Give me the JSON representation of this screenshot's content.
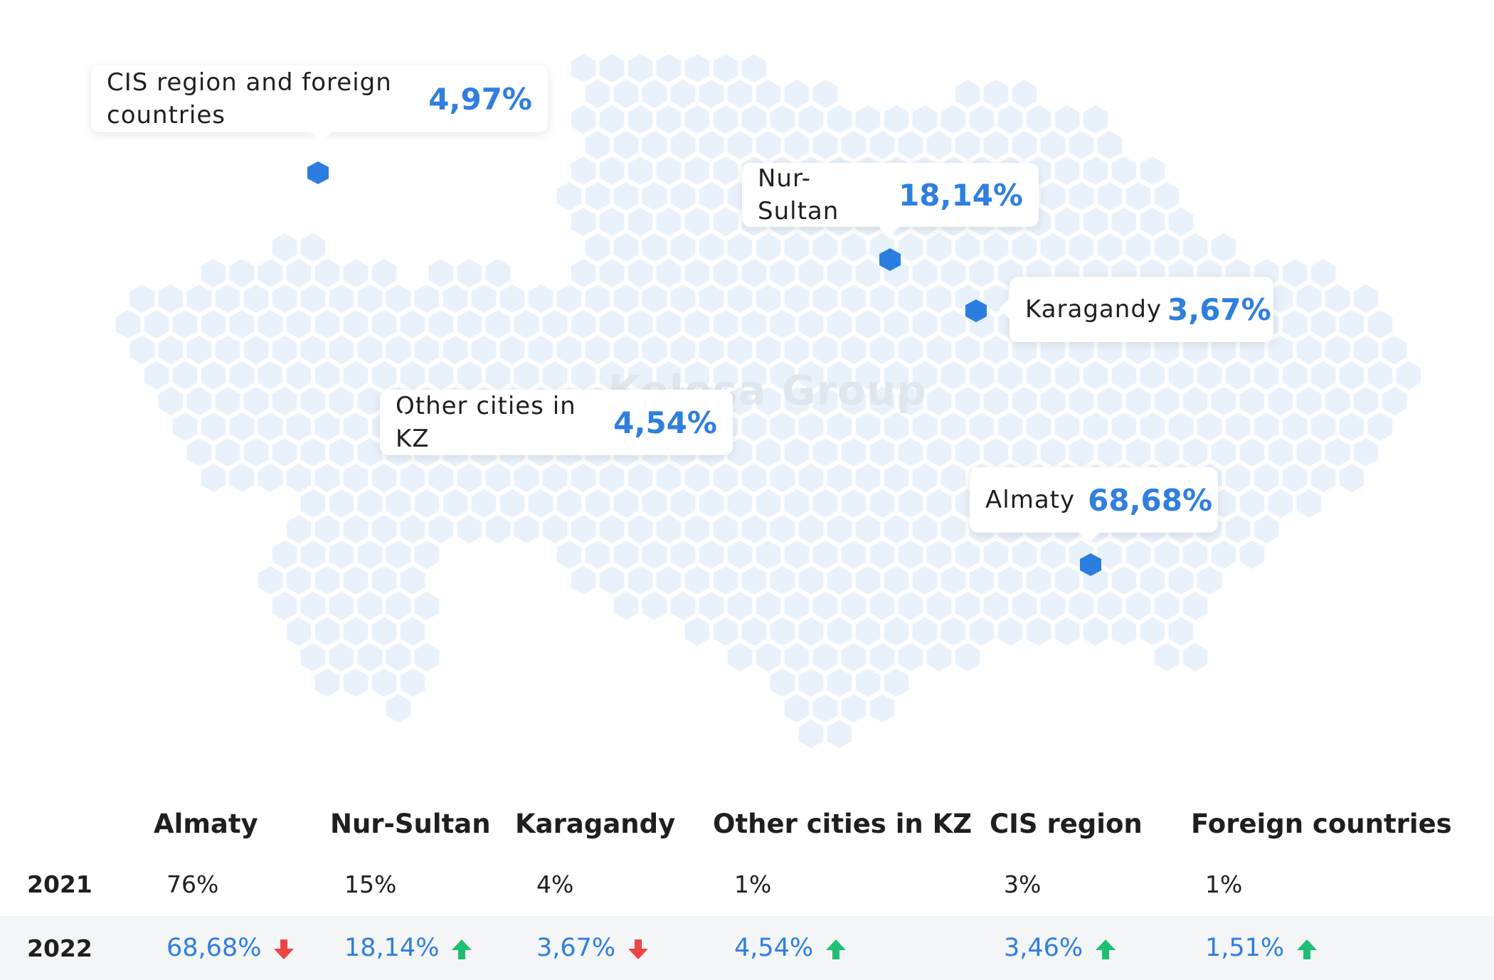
{
  "map": {
    "watermark": "Kolesa Group",
    "callouts": {
      "cis": {
        "label": "CIS region and foreign countries",
        "value": "4,97%"
      },
      "nursultan": {
        "label": "Nur-Sultan",
        "value": "18,14%"
      },
      "karagandy": {
        "label": "Karagandy",
        "value": "3,67%"
      },
      "other": {
        "label": "Other cities in KZ",
        "value": "4,54%"
      },
      "almaty": {
        "label": "Almaty",
        "value": "68,68%"
      }
    },
    "colors": {
      "hex_fill": "#e9f2fb",
      "marker": "#2b7ee0",
      "value_text": "#2f7fde"
    }
  },
  "table": {
    "headers": [
      "Almaty",
      "Nur-Sultan",
      "Karagandy",
      "Other cities in KZ",
      "CIS region",
      "Foreign countries"
    ],
    "rows": [
      {
        "year": "2021",
        "values": [
          "76%",
          "15%",
          "4%",
          "1%",
          "3%",
          "1%"
        ]
      },
      {
        "year": "2022",
        "values": [
          "68,68%",
          "18,14%",
          "3,67%",
          "4,54%",
          "3,46%",
          "1,51%"
        ],
        "trend": [
          "down-arrow-icon",
          "up-arrow-icon",
          "down-arrow-icon",
          "up-arrow-icon",
          "up-arrow-icon",
          "up-arrow-icon"
        ]
      }
    ],
    "colors": {
      "up": "#1fbf73",
      "down": "#f04444"
    }
  }
}
